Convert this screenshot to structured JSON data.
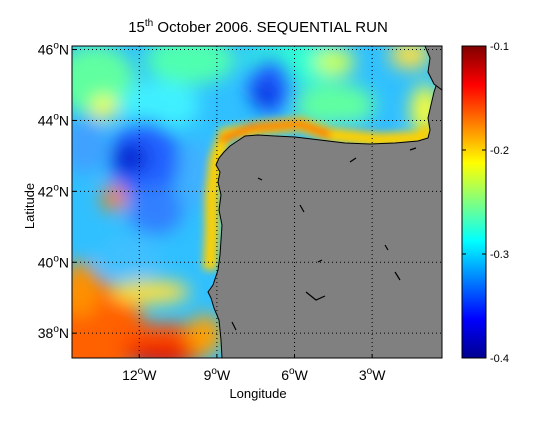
{
  "title": {
    "day": "15",
    "suffix": "th",
    "rest": " October 2006. SEQUENTIAL RUN"
  },
  "axes": {
    "xlabel": "Longitude",
    "ylabel": "Latitude",
    "x_ticks": [
      {
        "value": -12,
        "num": "12",
        "deg": "o",
        "hem": "W"
      },
      {
        "value": -9,
        "num": "9",
        "deg": "o",
        "hem": "W"
      },
      {
        "value": -6,
        "num": "6",
        "deg": "o",
        "hem": "W"
      },
      {
        "value": -3,
        "num": "3",
        "deg": "o",
        "hem": "W"
      }
    ],
    "y_ticks": [
      {
        "value": 46,
        "num": "46",
        "deg": "o",
        "hem": "N"
      },
      {
        "value": 44,
        "num": "44",
        "deg": "o",
        "hem": "N"
      },
      {
        "value": 42,
        "num": "42",
        "deg": "o",
        "hem": "N"
      },
      {
        "value": 40,
        "num": "40",
        "deg": "o",
        "hem": "N"
      },
      {
        "value": 38,
        "num": "38",
        "deg": "o",
        "hem": "N"
      }
    ],
    "xlim": [
      -14.6,
      -0.3
    ],
    "ylim": [
      37.3,
      46.1
    ]
  },
  "colorbar": {
    "ticks": [
      "-0.1",
      "-0.2",
      "-0.3",
      "-0.4"
    ],
    "range": [
      -0.4,
      -0.1
    ],
    "colormap": "jet"
  },
  "colors": {
    "land": "#808080",
    "coast": "#000000",
    "grid": "#000000"
  }
}
